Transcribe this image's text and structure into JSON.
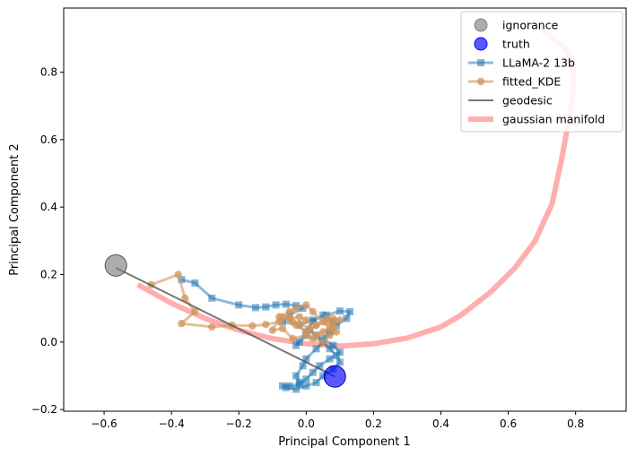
{
  "chart_data": {
    "type": "scatter",
    "xlabel": "Principal Component 1",
    "ylabel": "Principal Component 2",
    "xlim": [
      -0.72,
      0.95
    ],
    "ylim": [
      -0.205,
      0.99
    ],
    "x_ticks": [
      -0.6,
      -0.4,
      -0.2,
      0.0,
      0.2,
      0.4,
      0.6,
      0.8
    ],
    "x_tick_labels": [
      "−0.6",
      "−0.4",
      "−0.2",
      "0.0",
      "0.2",
      "0.4",
      "0.6",
      "0.8"
    ],
    "y_ticks": [
      -0.2,
      0.0,
      0.2,
      0.4,
      0.6,
      0.8
    ],
    "y_tick_labels": [
      "−0.2",
      "0.0",
      "0.2",
      "0.4",
      "0.6",
      "0.8"
    ],
    "grid": false,
    "legend_position": "top-right",
    "colors": {
      "ignorance": "#808080",
      "truth": "#0000ff",
      "llama": "#1f77b4",
      "kde": "#d2945b",
      "geodesic": "#555555",
      "manifold": "#ff9a9a"
    },
    "series": [
      {
        "name": "gaussian manifold",
        "kind": "line",
        "x": [
          -0.5,
          -0.4,
          -0.3,
          -0.2,
          -0.1,
          0.0,
          0.1,
          0.2,
          0.3,
          0.4,
          0.46,
          0.55,
          0.62,
          0.68,
          0.73,
          0.76,
          0.78,
          0.79,
          0.795,
          0.79,
          0.77,
          0.72,
          0.67
        ],
        "y": [
          0.17,
          0.115,
          0.07,
          0.035,
          0.01,
          -0.005,
          -0.012,
          -0.005,
          0.012,
          0.045,
          0.08,
          0.15,
          0.22,
          0.3,
          0.41,
          0.55,
          0.66,
          0.72,
          0.78,
          0.84,
          0.87,
          0.91,
          0.95
        ]
      },
      {
        "name": "geodesic",
        "kind": "line",
        "x": [
          -0.565,
          0.085
        ],
        "y": [
          0.22,
          -0.102
        ]
      },
      {
        "name": "LLaMA-2 13b",
        "kind": "line-marker",
        "marker": "square",
        "x": [
          -0.37,
          -0.33,
          -0.28,
          -0.2,
          -0.15,
          -0.12,
          -0.09,
          -0.06,
          -0.03,
          -0.01,
          -0.05,
          -0.07,
          -0.02,
          0.02,
          0.06,
          0.1,
          0.13,
          0.12,
          0.09,
          0.07,
          0.05,
          0.08,
          0.1,
          0.07,
          0.04,
          0.02,
          0.0,
          -0.02,
          -0.05,
          -0.07,
          -0.06,
          -0.03,
          0.0,
          0.03,
          0.05,
          0.08,
          0.1,
          0.09,
          0.07,
          0.05,
          0.03,
          0.01,
          0.0,
          -0.02,
          -0.03,
          0.0,
          0.02,
          0.05,
          0.08,
          0.07,
          0.05,
          0.03,
          0.0,
          -0.01,
          -0.03,
          -0.02
        ],
        "y": [
          0.185,
          0.175,
          0.13,
          0.11,
          0.102,
          0.104,
          0.11,
          0.112,
          0.108,
          0.1,
          0.08,
          0.06,
          0.05,
          0.065,
          0.08,
          0.092,
          0.09,
          0.07,
          0.05,
          0.03,
          0.01,
          -0.01,
          -0.03,
          -0.05,
          -0.07,
          -0.09,
          -0.11,
          -0.125,
          -0.13,
          -0.13,
          -0.135,
          -0.14,
          -0.13,
          -0.12,
          -0.1,
          -0.08,
          -0.06,
          -0.04,
          -0.02,
          0.0,
          0.02,
          0.035,
          0.02,
          0.0,
          -0.01,
          0.03,
          0.06,
          0.08,
          0.06,
          0.03,
          0.0,
          -0.02,
          -0.05,
          -0.07,
          -0.1,
          -0.12
        ]
      },
      {
        "name": "fitted_KDE",
        "kind": "line-marker",
        "marker": "circle",
        "x": [
          -0.46,
          -0.38,
          -0.36,
          -0.33,
          -0.37,
          -0.28,
          -0.22,
          -0.16,
          -0.12,
          -0.08,
          -0.05,
          -0.02,
          0.0,
          0.03,
          0.06,
          0.08,
          0.1,
          0.08,
          0.05,
          0.03,
          0.01,
          -0.02,
          -0.04,
          -0.07,
          -0.05,
          -0.03,
          0.0,
          0.02,
          0.05,
          0.07,
          0.09,
          0.07,
          0.05,
          0.02,
          0.0,
          -0.03,
          -0.05,
          -0.08,
          -0.1,
          -0.07,
          -0.04,
          0.0,
          0.03,
          0.06,
          0.08
        ],
        "y": [
          0.17,
          0.2,
          0.13,
          0.09,
          0.055,
          0.045,
          0.05,
          0.048,
          0.052,
          0.06,
          0.07,
          0.075,
          0.065,
          0.05,
          0.06,
          0.07,
          0.065,
          0.05,
          0.03,
          0.02,
          0.04,
          0.055,
          0.06,
          0.075,
          0.09,
          0.1,
          0.11,
          0.09,
          0.06,
          0.04,
          0.03,
          0.02,
          0.0,
          0.01,
          0.03,
          0.05,
          0.07,
          0.075,
          0.035,
          0.04,
          0.01,
          0.02,
          0.05,
          0.07,
          0.04
        ]
      },
      {
        "name": "ignorance",
        "kind": "point",
        "x": [
          -0.565
        ],
        "y": [
          0.227
        ]
      },
      {
        "name": "truth",
        "kind": "point",
        "x": [
          0.085
        ],
        "y": [
          -0.102
        ]
      }
    ],
    "legend": [
      {
        "label": "ignorance",
        "kind": "point",
        "color_key": "ignorance"
      },
      {
        "label": "truth",
        "kind": "point",
        "color_key": "truth"
      },
      {
        "label": "LLaMA-2 13b",
        "kind": "line-square",
        "color_key": "llama"
      },
      {
        "label": "fitted_KDE",
        "kind": "line-circle",
        "color_key": "kde"
      },
      {
        "label": "geodesic",
        "kind": "line",
        "color_key": "geodesic"
      },
      {
        "label": "gaussian manifold",
        "kind": "thick-line",
        "color_key": "manifold"
      }
    ]
  }
}
